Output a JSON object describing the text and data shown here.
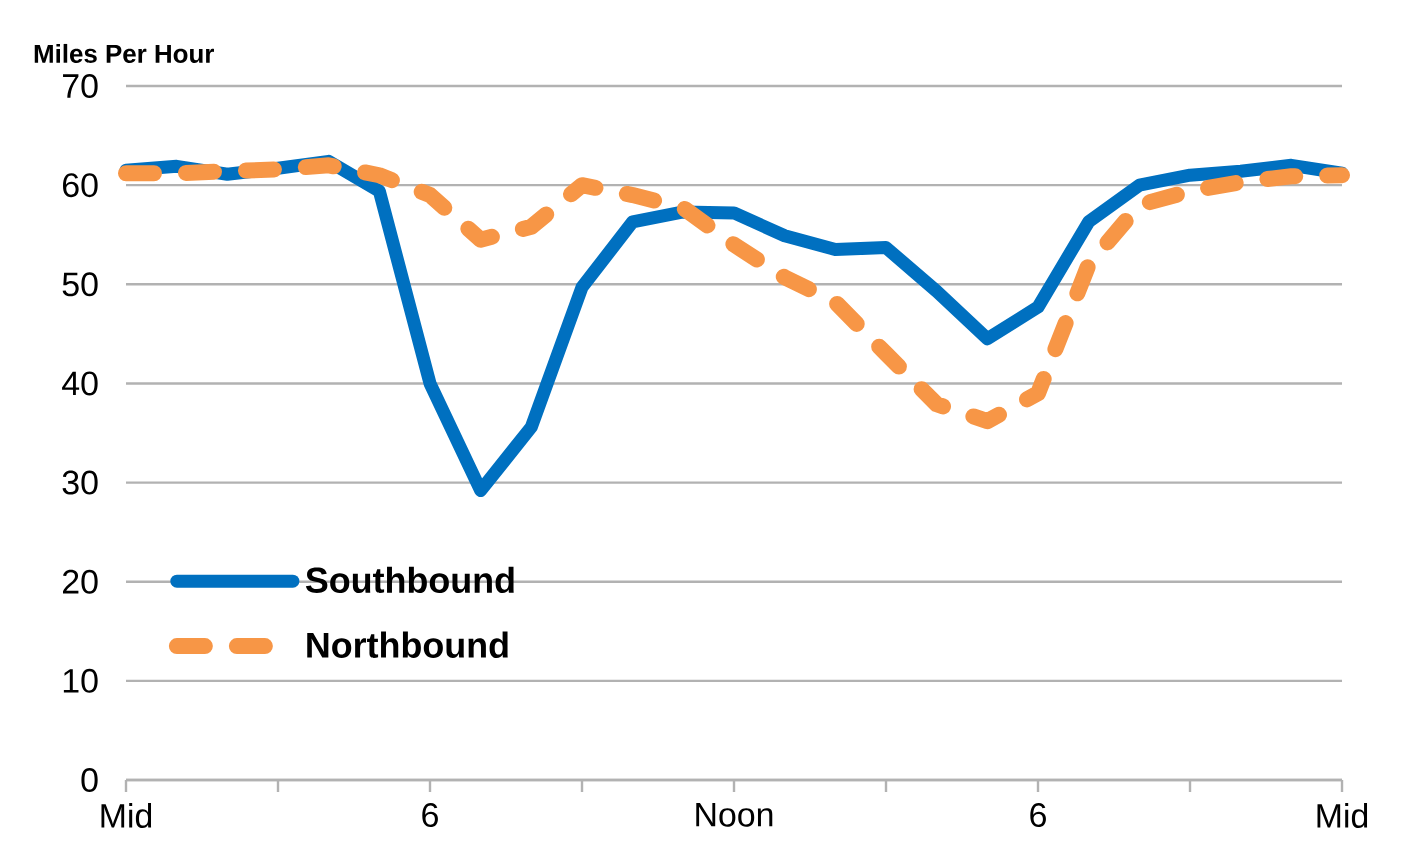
{
  "chart_data": {
    "type": "line",
    "ylabel": "Miles Per Hour",
    "categories": [
      "Mid",
      null,
      null,
      null,
      null,
      null,
      "6",
      null,
      null,
      null,
      null,
      null,
      "Noon",
      null,
      null,
      null,
      null,
      null,
      "6",
      null,
      null,
      null,
      null,
      null,
      "Mid"
    ],
    "series": [
      {
        "name": "Southbound",
        "color": "#0070c0",
        "line_style": "solid",
        "values": [
          61.5,
          61.9,
          61.1,
          61.7,
          62.4,
          59.4,
          40,
          29.2,
          35.6,
          49.7,
          56.3,
          57.3,
          57.2,
          54.9,
          53.5,
          53.7,
          49.3,
          44.5,
          47.7,
          56.3,
          60,
          61,
          61.4,
          62,
          61.2
        ]
      },
      {
        "name": "Northbound",
        "color": "#f79646",
        "line_style": "dashed",
        "values": [
          61.2,
          61.2,
          61.4,
          61.6,
          62,
          61,
          59,
          54.5,
          55.8,
          60,
          59,
          57.7,
          54,
          50.7,
          48.2,
          43,
          37.9,
          36.2,
          39,
          52,
          58,
          59.4,
          60.3,
          60.9,
          61
        ]
      }
    ],
    "ylim": [
      0,
      70
    ],
    "yticks": [
      0,
      10,
      20,
      30,
      40,
      50,
      60,
      70
    ],
    "grid": "y",
    "legend": "left"
  }
}
